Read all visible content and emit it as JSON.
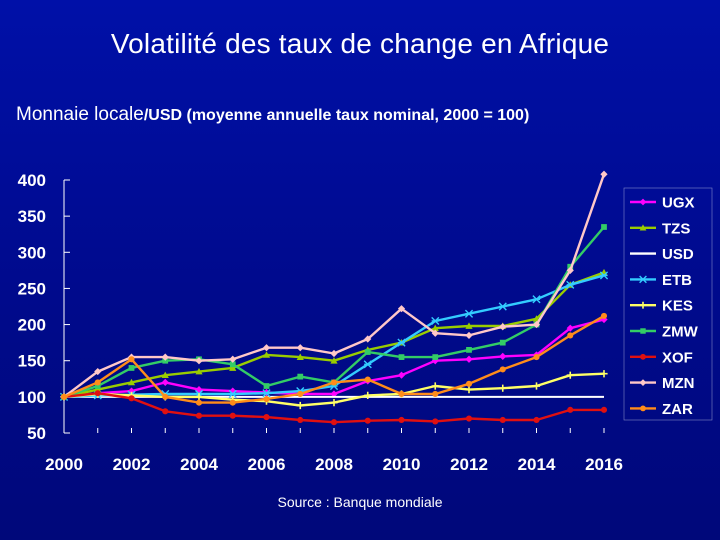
{
  "page": {
    "title": "Volatilité des taux de change en Afrique",
    "subtitle_main": "Monnaie locale",
    "subtitle_note": "/USD (moyenne annuelle taux nominal, 2000 = 100)",
    "source": "Source : Banque mondiale"
  },
  "chart_data": {
    "type": "line",
    "title": "Volatilité des taux de change en Afrique",
    "ylabel": "Monnaie locale/USD (moyenne annuelle taux nominal, 2000 = 100)",
    "xlabel": "",
    "x": [
      2000,
      2001,
      2002,
      2003,
      2004,
      2005,
      2006,
      2007,
      2008,
      2009,
      2010,
      2011,
      2012,
      2013,
      2014,
      2015,
      2016
    ],
    "xticks": [
      2000,
      2002,
      2004,
      2006,
      2008,
      2010,
      2012,
      2014,
      2016
    ],
    "xtick_labels": [
      "2000",
      "2002",
      "2004",
      "2006",
      "2008",
      "2010",
      "2012",
      "2014",
      "2016"
    ],
    "xlim": [
      2000,
      2016
    ],
    "ylim": [
      50,
      400
    ],
    "yticks": [
      50,
      100,
      150,
      200,
      250,
      300,
      350,
      400
    ],
    "ytick_labels": [
      "50",
      "100",
      "150",
      "200",
      "250",
      "300",
      "350",
      "400"
    ],
    "grid": false,
    "legend_position": "right",
    "series": [
      {
        "name": "UGX",
        "color": "#ff00ff",
        "marker": "diamond",
        "values": [
          100,
          105,
          108,
          120,
          110,
          108,
          106,
          104,
          104,
          122,
          130,
          150,
          152,
          156,
          158,
          195,
          207
        ]
      },
      {
        "name": "TZS",
        "color": "#99cc00",
        "marker": "triangle",
        "values": [
          100,
          110,
          120,
          130,
          135,
          140,
          158,
          155,
          150,
          165,
          175,
          195,
          198,
          198,
          208,
          255,
          272
        ]
      },
      {
        "name": "USD",
        "color": "#ffffff",
        "marker": "none",
        "values": [
          100,
          100,
          100,
          100,
          100,
          100,
          100,
          100,
          100,
          100,
          100,
          100,
          100,
          100,
          100,
          100,
          100
        ]
      },
      {
        "name": "ETB",
        "color": "#33ccff",
        "marker": "star",
        "values": [
          100,
          102,
          103,
          104,
          104,
          104,
          105,
          108,
          115,
          145,
          175,
          205,
          215,
          225,
          235,
          255,
          268
        ]
      },
      {
        "name": "KES",
        "color": "#ffff66",
        "marker": "plus",
        "values": [
          100,
          104,
          102,
          100,
          100,
          96,
          94,
          88,
          92,
          102,
          104,
          115,
          110,
          112,
          115,
          130,
          132
        ]
      },
      {
        "name": "ZMW",
        "color": "#33cc66",
        "marker": "square",
        "values": [
          100,
          115,
          140,
          150,
          152,
          145,
          115,
          128,
          120,
          162,
          155,
          155,
          165,
          175,
          200,
          280,
          335
        ]
      },
      {
        "name": "XOF",
        "color": "#e01010",
        "marker": "circle",
        "values": [
          100,
          105,
          98,
          80,
          74,
          74,
          72,
          68,
          65,
          67,
          68,
          66,
          70,
          68,
          68,
          82,
          82
        ]
      },
      {
        "name": "MZN",
        "color": "#ffc8c8",
        "marker": "diamond",
        "values": [
          100,
          135,
          155,
          155,
          150,
          152,
          168,
          168,
          160,
          180,
          222,
          188,
          185,
          197,
          200,
          275,
          408
        ]
      },
      {
        "name": "ZAR",
        "color": "#ff8c1a",
        "marker": "circle",
        "values": [
          100,
          120,
          152,
          100,
          92,
          92,
          97,
          104,
          120,
          124,
          104,
          104,
          118,
          138,
          155,
          185,
          212
        ]
      }
    ]
  }
}
